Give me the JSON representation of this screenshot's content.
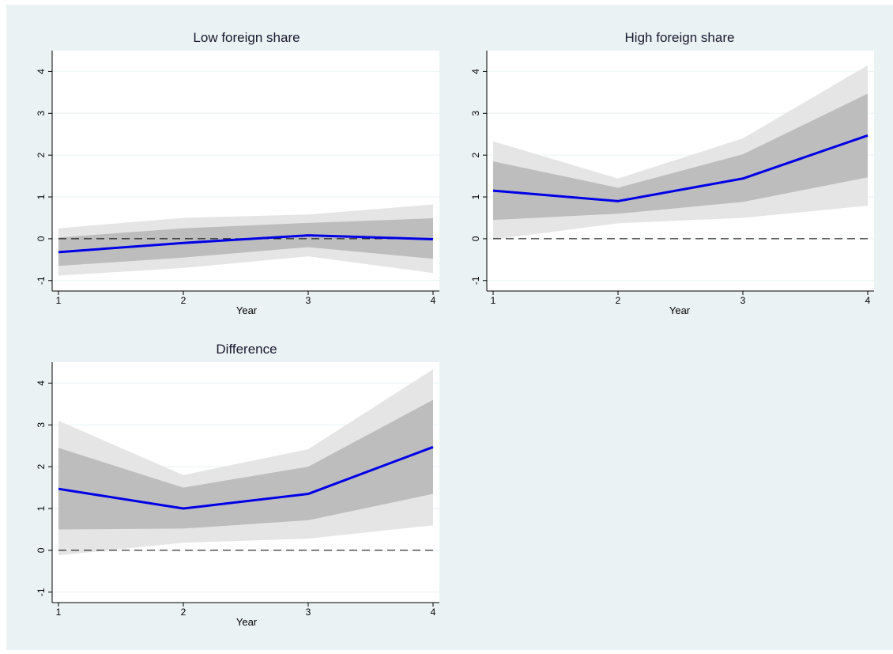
{
  "colors": {
    "background": "#eaf2f3",
    "plot_background": "#ffffff",
    "outer_band": "#e5e5e5",
    "inner_band": "#bdbdbd",
    "line": "#0000e6",
    "zero_line": "#000000",
    "grid": "#eaf2f3"
  },
  "chart_data": [
    {
      "type": "line",
      "title": "Low foreign share",
      "xlabel": "Year",
      "ylabel": "",
      "x": [
        1,
        2,
        3,
        4
      ],
      "xticks": [
        "1",
        "2",
        "3",
        "4"
      ],
      "yticks": [
        "-1",
        "0",
        "1",
        "2",
        "3",
        "4"
      ],
      "ylim": [
        -1.25,
        4.5
      ],
      "series": [
        {
          "values": [
            -0.32,
            -0.1,
            0.08,
            -0.01
          ]
        }
      ],
      "band_inner": {
        "lower": [
          -0.65,
          -0.45,
          -0.2,
          -0.48
        ],
        "upper": [
          0.03,
          0.25,
          0.38,
          0.49
        ]
      },
      "band_outer": {
        "lower": [
          -0.88,
          -0.7,
          -0.42,
          -0.82
        ],
        "upper": [
          0.25,
          0.5,
          0.58,
          0.82
        ]
      },
      "reference_line": 0,
      "grid": true
    },
    {
      "type": "line",
      "title": "High foreign share",
      "xlabel": "Year",
      "ylabel": "",
      "x": [
        1,
        2,
        3,
        4
      ],
      "xticks": [
        "1",
        "2",
        "3",
        "4"
      ],
      "yticks": [
        "-1",
        "0",
        "1",
        "2",
        "3",
        "4"
      ],
      "ylim": [
        -1.25,
        4.5
      ],
      "series": [
        {
          "values": [
            1.15,
            0.9,
            1.44,
            2.47
          ]
        }
      ],
      "band_inner": {
        "lower": [
          0.45,
          0.6,
          0.88,
          1.47
        ],
        "upper": [
          1.85,
          1.22,
          2.02,
          3.47
        ]
      },
      "band_outer": {
        "lower": [
          -0.02,
          0.37,
          0.5,
          0.79
        ],
        "upper": [
          2.33,
          1.44,
          2.4,
          4.15
        ]
      },
      "reference_line": 0,
      "grid": true
    },
    {
      "type": "line",
      "title": "Difference",
      "xlabel": "Year",
      "ylabel": "",
      "x": [
        1,
        2,
        3,
        4
      ],
      "xticks": [
        "1",
        "2",
        "3",
        "4"
      ],
      "yticks": [
        "-1",
        "0",
        "1",
        "2",
        "3",
        "4"
      ],
      "ylim": [
        -1.25,
        4.5
      ],
      "series": [
        {
          "values": [
            1.47,
            1.0,
            1.35,
            2.47
          ]
        }
      ],
      "band_inner": {
        "lower": [
          0.5,
          0.52,
          0.72,
          1.35
        ],
        "upper": [
          2.45,
          1.5,
          2.0,
          3.6
        ]
      },
      "band_outer": {
        "lower": [
          -0.12,
          0.18,
          0.28,
          0.6
        ],
        "upper": [
          3.1,
          1.8,
          2.42,
          4.33
        ]
      },
      "reference_line": 0,
      "grid": true
    }
  ]
}
